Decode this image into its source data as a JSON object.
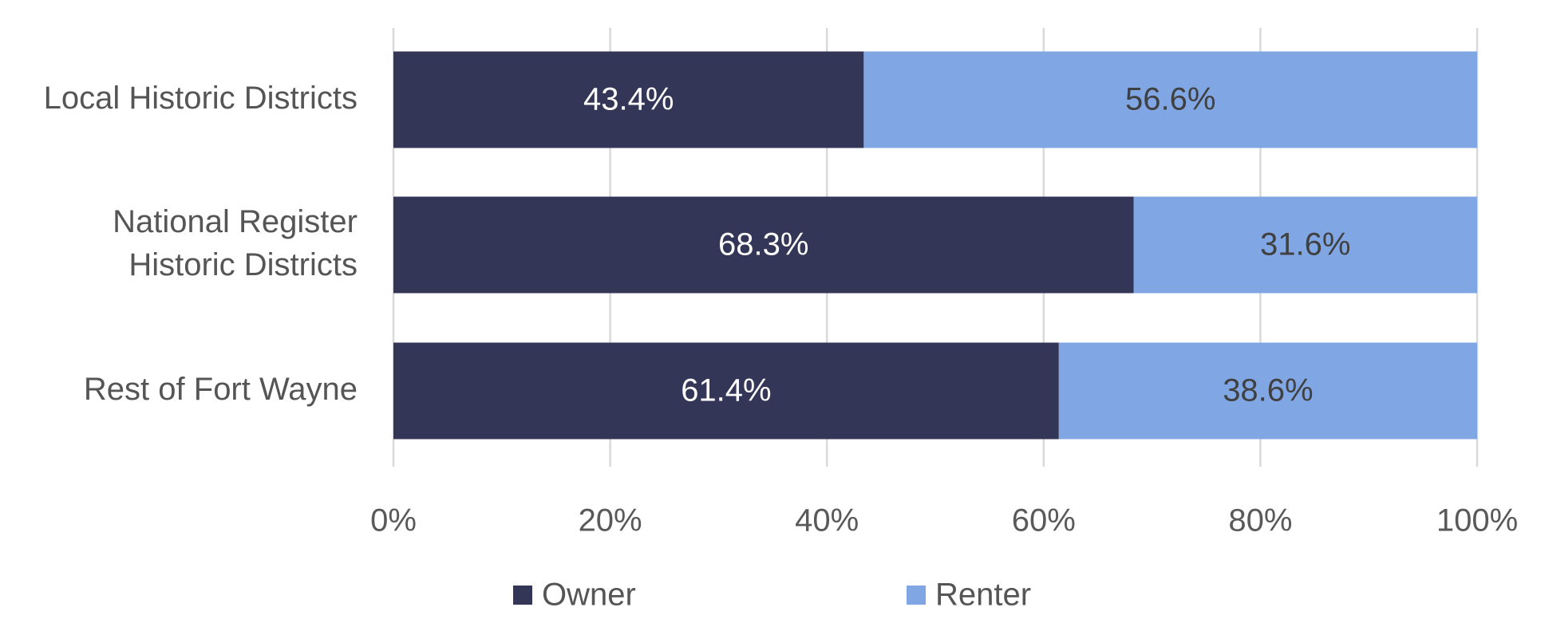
{
  "chart_data": {
    "type": "bar",
    "orientation": "horizontal",
    "stacked": "percent",
    "title": "",
    "xlabel": "",
    "ylabel": "",
    "categories": [
      "Local Historic Districts",
      "National Register Historic Districts",
      "Rest of Fort Wayne"
    ],
    "category_display": [
      [
        "Local Historic Districts"
      ],
      [
        "National Register",
        "Historic Districts"
      ],
      [
        "Rest of Fort Wayne"
      ]
    ],
    "series": [
      {
        "name": "Owner",
        "values": [
          43.4,
          68.3,
          61.4
        ],
        "labels": [
          "43.4%",
          "68.3%",
          "61.4%"
        ],
        "color": "#343658",
        "label_color": "#ffffff"
      },
      {
        "name": "Renter",
        "values": [
          56.6,
          31.6,
          38.6
        ],
        "labels": [
          "56.6%",
          "31.6%",
          "38.6%"
        ],
        "color": "#80a7e4",
        "label_color": "#404040"
      }
    ],
    "xlim": [
      0,
      100
    ],
    "x_ticks": [
      0,
      20,
      40,
      60,
      80,
      100
    ],
    "x_tick_labels": [
      "0%",
      "20%",
      "40%",
      "60%",
      "80%",
      "100%"
    ],
    "grid": true,
    "legend": {
      "position": "bottom",
      "entries": [
        "Owner",
        "Renter"
      ]
    }
  }
}
